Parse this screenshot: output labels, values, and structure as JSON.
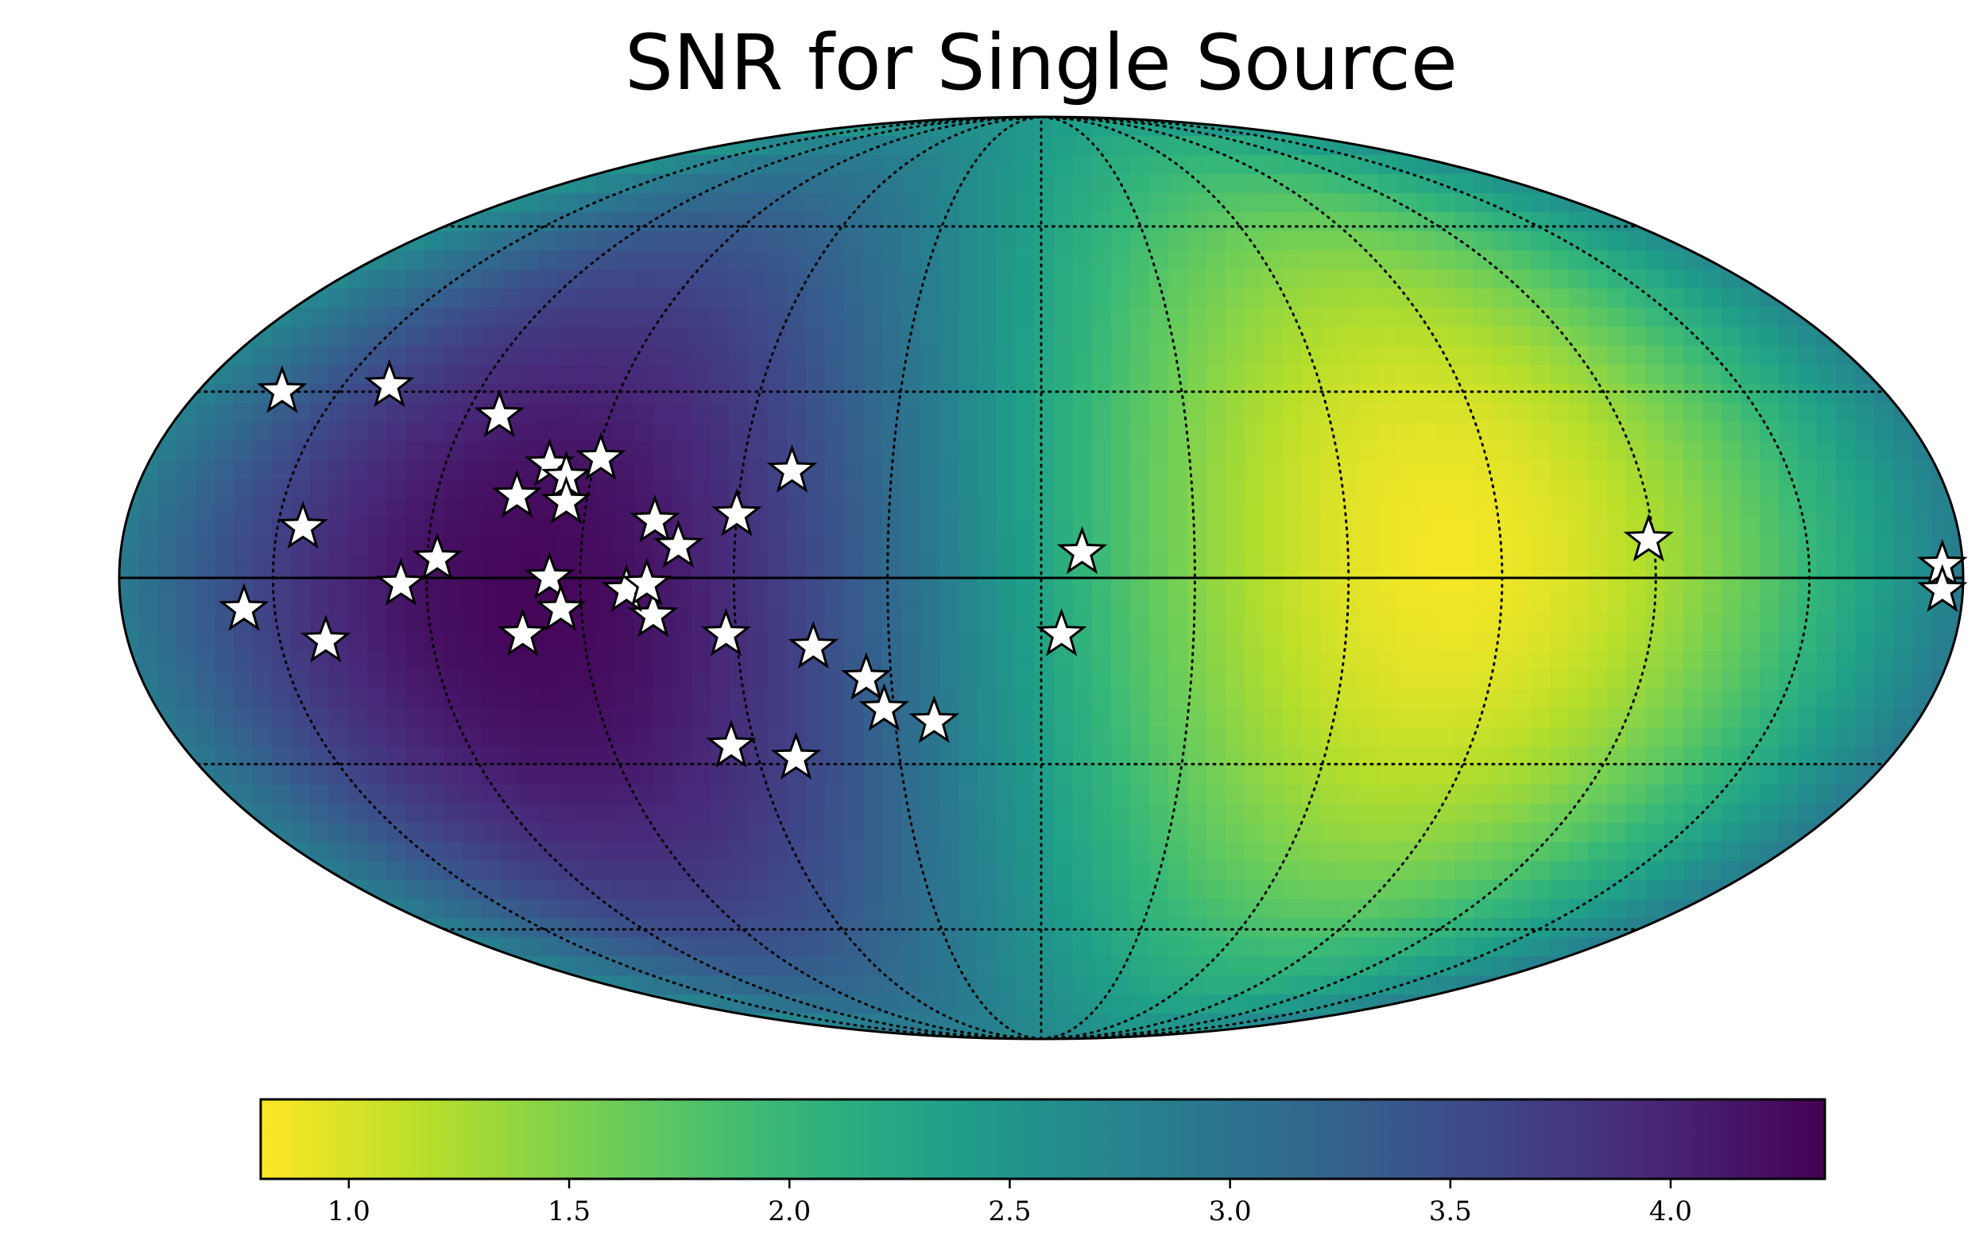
{
  "chart_data": {
    "type": "heatmap",
    "projection": "mollweide",
    "title": "SNR for Single Source",
    "colormap": "viridis",
    "colormap_reversed": true,
    "color_range": [
      0.8,
      4.35
    ],
    "colorbar": {
      "position": "bottom",
      "ticks": [
        1.0,
        1.5,
        2.0,
        2.5,
        3.0,
        3.5,
        4.0
      ],
      "tick_labels": [
        "1.0",
        "1.5",
        "2.0",
        "2.5",
        "3.0",
        "3.5",
        "4.0"
      ]
    },
    "graticule": {
      "meridian_step_deg": 30,
      "parallel_step_deg": 30,
      "style": "dotted"
    },
    "field": {
      "description": "dipole-like SNR sky map",
      "peak_value": 4.3,
      "peak_lon_deg": 100,
      "peak_lat_deg": -8,
      "min_value": 0.85,
      "min_lon_deg": -80,
      "min_lat_deg": 0
    },
    "markers": {
      "symbol": "star",
      "fill": "#ffffff",
      "stroke": "#000000",
      "points_lon_lat": [
        [
          162,
          30
        ],
        [
          140,
          31
        ],
        [
          113,
          26
        ],
        [
          145,
          8
        ],
        [
          -119,
          6
        ],
        [
          125,
          -1
        ],
        [
          -176,
          2
        ],
        [
          -176,
          -2
        ],
        [
          60,
          10
        ],
        [
          76,
          -6
        ],
        [
          99,
          18
        ],
        [
          104,
          13
        ],
        [
          95,
          16
        ],
        [
          94,
          12
        ],
        [
          89,
          19
        ],
        [
          81,
          -2
        ],
        [
          96,
          0
        ],
        [
          118,
          3
        ],
        [
          94,
          -5
        ],
        [
          102,
          -9
        ],
        [
          76,
          9
        ],
        [
          77,
          -1
        ],
        [
          71,
          5
        ],
        [
          50,
          17
        ],
        [
          62,
          -9
        ],
        [
          45,
          -11
        ],
        [
          35,
          -16
        ],
        [
          32,
          -21
        ],
        [
          22,
          -23
        ],
        [
          65,
          -27
        ],
        [
          52,
          -29
        ],
        [
          156,
          -5
        ],
        [
          141,
          -10
        ],
        [
          -8,
          4
        ],
        [
          -4,
          -9
        ]
      ]
    }
  },
  "colors": {
    "viridis_stops": [
      "#440154",
      "#482878",
      "#3e4989",
      "#31688e",
      "#26828e",
      "#1f9e89",
      "#35b779",
      "#6ece58",
      "#b5de2b",
      "#fde725"
    ],
    "outline": "#000000",
    "background": "#ffffff"
  }
}
